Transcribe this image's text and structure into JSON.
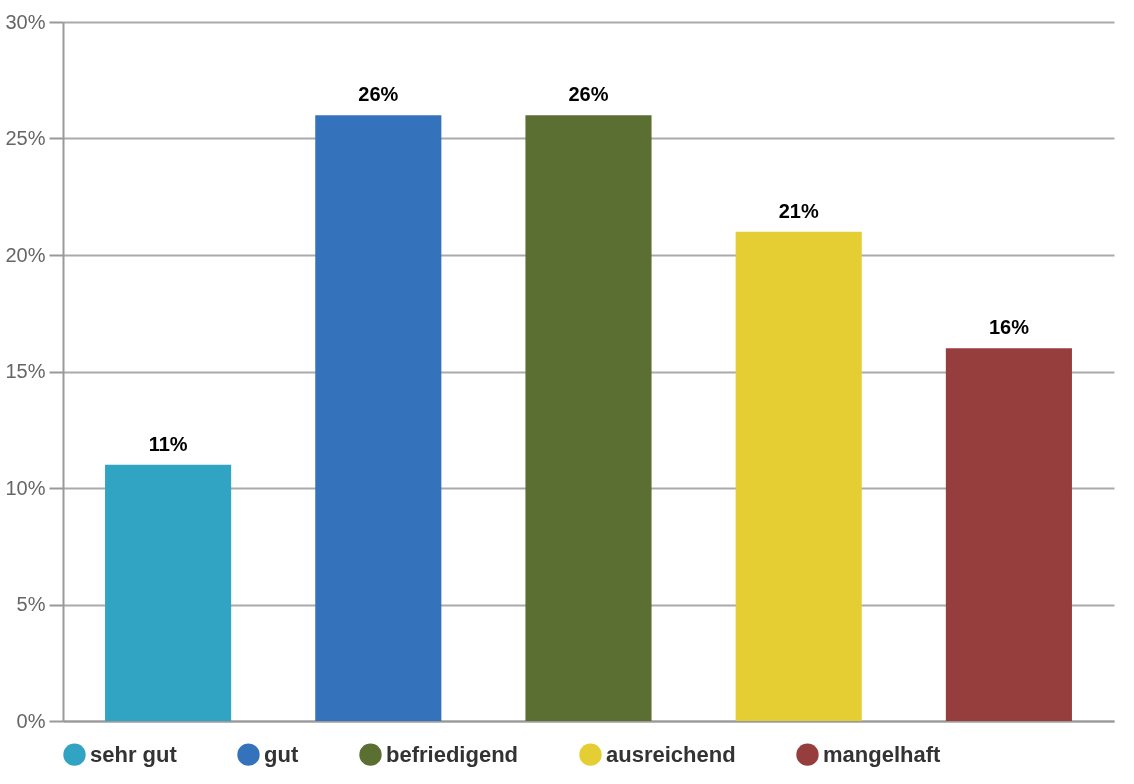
{
  "chart_data": {
    "type": "bar",
    "categories": [
      null,
      null,
      null,
      null,
      null
    ],
    "series": [
      {
        "name": "sehr gut",
        "color": "#31a4c4",
        "values": [
          11,
          null,
          null,
          null,
          null
        ],
        "value_labels": [
          "11%",
          null,
          null,
          null,
          null
        ]
      },
      {
        "name": "gut",
        "color": "#3473bb",
        "values": [
          null,
          26,
          null,
          null,
          null
        ],
        "value_labels": [
          null,
          "26%",
          null,
          null,
          null
        ]
      },
      {
        "name": "befriedigend",
        "color": "#5b6f33",
        "values": [
          null,
          null,
          26,
          null,
          null
        ],
        "value_labels": [
          null,
          null,
          "26%",
          null,
          null
        ]
      },
      {
        "name": "ausreichend",
        "color": "#e4ce33",
        "values": [
          null,
          null,
          null,
          21,
          null
        ],
        "value_labels": [
          null,
          null,
          null,
          "21%",
          null
        ]
      },
      {
        "name": "mangelhaft",
        "color": "#963e3d",
        "values": [
          null,
          null,
          null,
          null,
          16
        ],
        "value_labels": [
          null,
          null,
          null,
          null,
          "16%"
        ]
      }
    ],
    "ylim": [
      0,
      30
    ],
    "yticks": [
      {
        "value": 0,
        "label": "0%"
      },
      {
        "value": 5,
        "label": "5%"
      },
      {
        "value": 10,
        "label": "10%"
      },
      {
        "value": 15,
        "label": "15%"
      },
      {
        "value": 20,
        "label": "20%"
      },
      {
        "value": 25,
        "label": "25%"
      },
      {
        "value": 30,
        "label": "30%"
      }
    ],
    "grid": "y",
    "legend": "bottom"
  }
}
